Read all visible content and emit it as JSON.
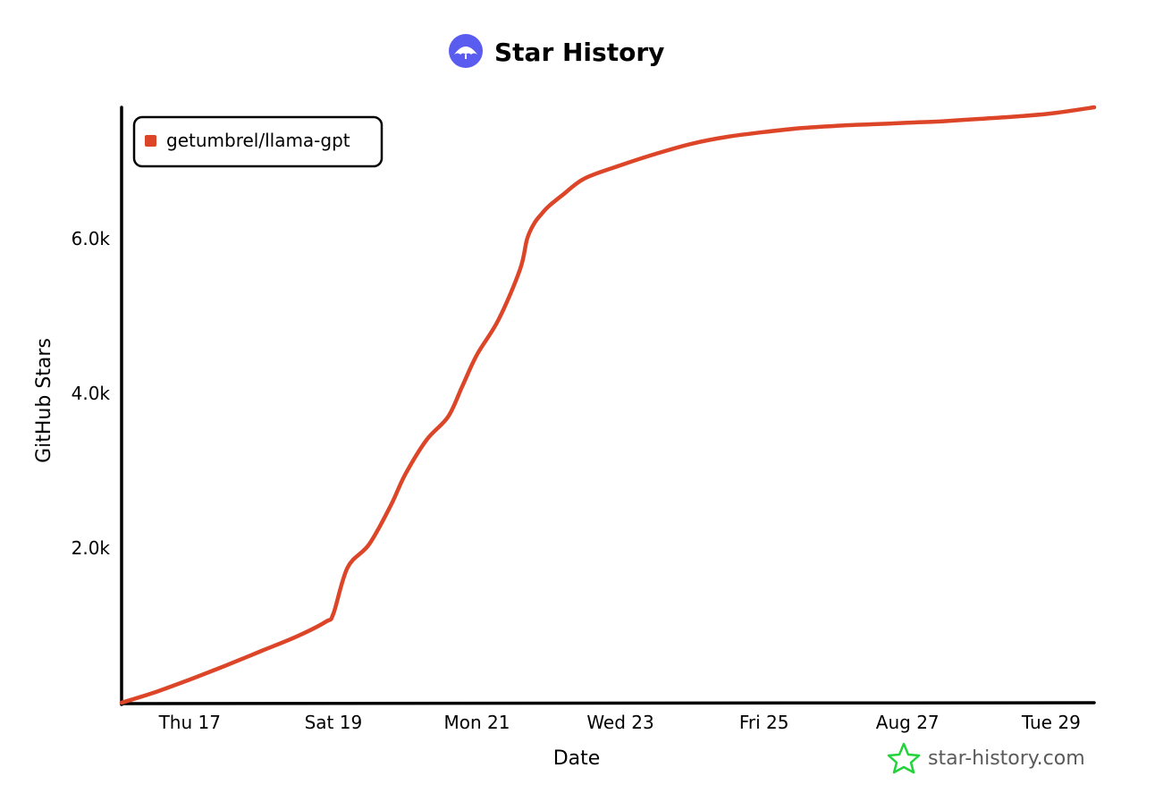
{
  "colors": {
    "series": "#dd4528",
    "axis": "#000000",
    "logo_bg": "#5a5cf0",
    "watermark_star": "#22d33a"
  },
  "icons": {
    "logo": "umbrella-logo-icon",
    "legend_swatch": "legend-swatch-icon",
    "watermark": "star-outline-icon"
  },
  "chart_data": {
    "type": "line",
    "title": "Star History",
    "xlabel": "Date",
    "ylabel": "GitHub Stars",
    "x_ticks": [
      "Thu 17",
      "Sat 19",
      "Mon 21",
      "Wed 23",
      "Fri 25",
      "Aug 27",
      "Tue 29"
    ],
    "x_tick_days": [
      17,
      19,
      21,
      23,
      25,
      27,
      29
    ],
    "xlim": [
      16.05,
      29.6
    ],
    "y_ticks": [
      "2.0k",
      "4.0k",
      "6.0k"
    ],
    "y_tick_values": [
      2000,
      4000,
      6000
    ],
    "ylim": [
      0,
      7700
    ],
    "grid": false,
    "legend_position": "top-left",
    "series": [
      {
        "name": "getumbrel/llama-gpt",
        "x": [
          16.05,
          16.5,
          17.0,
          17.5,
          18.0,
          18.5,
          18.9,
          19.0,
          19.2,
          19.5,
          19.8,
          20.0,
          20.3,
          20.6,
          20.8,
          21.0,
          21.3,
          21.6,
          21.7,
          21.8,
          21.9,
          22.0,
          22.2,
          22.5,
          23.0,
          23.5,
          24.0,
          24.5,
          25.0,
          25.5,
          26.0,
          26.5,
          27.0,
          27.5,
          28.0,
          28.5,
          29.0,
          29.6
        ],
        "y": [
          0,
          130,
          300,
          480,
          670,
          860,
          1050,
          1150,
          1750,
          2050,
          2550,
          2950,
          3400,
          3700,
          4100,
          4500,
          4950,
          5600,
          6000,
          6200,
          6320,
          6420,
          6570,
          6780,
          6950,
          7100,
          7230,
          7320,
          7380,
          7430,
          7460,
          7480,
          7500,
          7520,
          7550,
          7580,
          7620,
          7700
        ]
      }
    ]
  },
  "watermark": {
    "text": "star-history.com"
  }
}
